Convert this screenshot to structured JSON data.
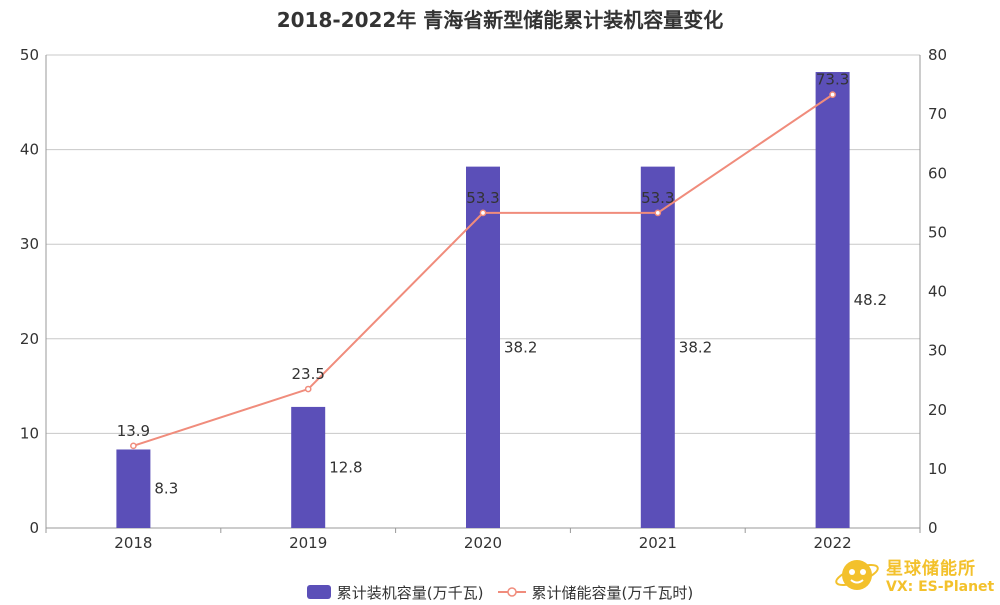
{
  "chart_data": {
    "type": "bar",
    "title": "2018-2022年 青海省新型储能累计装机容量变化",
    "categories": [
      "2018",
      "2019",
      "2020",
      "2021",
      "2022"
    ],
    "series": [
      {
        "name": "累计装机容量(万千瓦)",
        "type": "bar",
        "axis": "left",
        "color": "#5b4fb8",
        "values": [
          8.3,
          12.8,
          38.2,
          38.2,
          48.2
        ]
      },
      {
        "name": "累计储能容量(万千瓦时)",
        "type": "line",
        "axis": "right",
        "color": "#f08c7c",
        "values": [
          13.9,
          23.5,
          53.3,
          53.3,
          73.3
        ]
      }
    ],
    "y_left": {
      "min": 0,
      "max": 50,
      "ticks": [
        0,
        10,
        20,
        30,
        40,
        50
      ]
    },
    "y_right": {
      "min": 0,
      "max": 80,
      "ticks": [
        0,
        10,
        20,
        30,
        40,
        50,
        60,
        70,
        80
      ]
    },
    "grid": true,
    "legend_position": "bottom-center"
  },
  "watermark": {
    "name": "星球储能所",
    "sub": "VX: ES-Planet",
    "logo_color": "#f3c12c"
  }
}
